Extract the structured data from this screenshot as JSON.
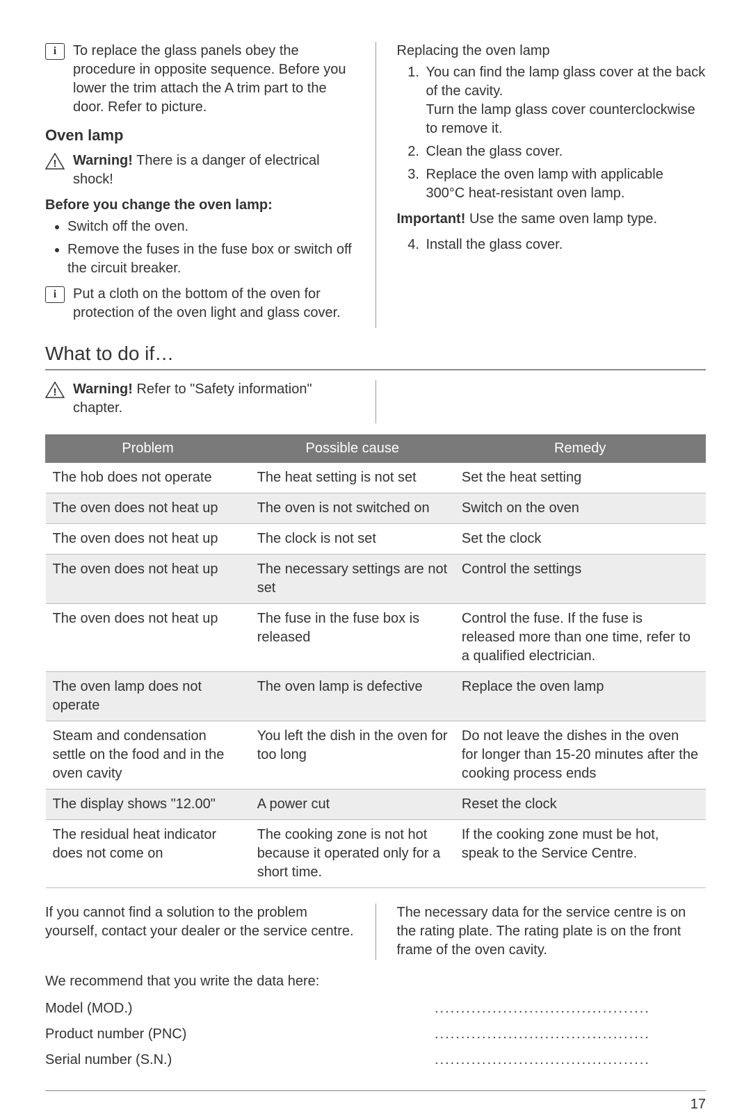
{
  "left": {
    "info_1": "To replace the glass panels obey the procedure in opposite sequence. Before you lower the trim attach the A trim part to the door. Refer to picture.",
    "oven_lamp_heading": "Oven lamp",
    "warn_1_bold": "Warning!",
    "warn_1_text": " There is a danger of electrical shock!",
    "before_heading": "Before you change the oven lamp:",
    "bullets": [
      "Switch off the oven.",
      "Remove the fuses in the fuse box or switch off the circuit breaker."
    ],
    "info_2": "Put a cloth on the bottom of the oven for protection of the oven light and glass cover."
  },
  "right": {
    "replacing_heading": "Replacing the oven lamp",
    "step1a": "You can find the lamp glass cover at the back of the cavity.",
    "step1b": "Turn the lamp glass cover counterclockwise to remove it.",
    "step2": "Clean the glass cover.",
    "step3": "Replace the oven lamp with applicable 300°C heat-resistant oven lamp.",
    "important_bold": "Important!",
    "important_text": " Use the same oven lamp type.",
    "step4": "Install the glass cover."
  },
  "section_title": "What to do if…",
  "warn_2_bold": "Warning!",
  "warn_2_text": " Refer to \"Safety information\" chapter.",
  "table": {
    "headers": [
      "Problem",
      "Possible cause",
      "Remedy"
    ],
    "rows": [
      [
        "The hob does not operate",
        "The heat setting is not set",
        "Set the heat setting"
      ],
      [
        "The oven does not heat up",
        "The oven is not switched on",
        "Switch on the oven"
      ],
      [
        "The oven does not heat up",
        "The clock is not set",
        "Set the clock"
      ],
      [
        "The oven does not heat up",
        "The necessary settings are not set",
        "Control the settings"
      ],
      [
        "The oven does not heat up",
        "The fuse in the fuse box is released",
        "Control the fuse. If the fuse is released more than one time, refer to a qualified electrician."
      ],
      [
        "The oven lamp does not operate",
        "The oven lamp is defective",
        "Replace the oven lamp"
      ],
      [
        "Steam and condensation settle on the food and in the oven cavity",
        "You left the dish in the oven for too long",
        "Do not leave the dishes in the oven for longer than 15-20 minutes after the cooking process ends"
      ],
      [
        "The display shows \"12.00\"",
        "A power cut",
        "Reset the clock"
      ],
      [
        "The residual heat indicator does not come on",
        "The cooking zone is not hot because it operated only for a short time.",
        "If the cooking zone must be hot, speak to the Service Centre."
      ]
    ]
  },
  "closing": {
    "left": "If you cannot find a solution to the problem yourself, contact your dealer or the service centre.",
    "right": "The necessary data for the service centre is on the rating plate. The rating plate is on the front frame of the oven cavity."
  },
  "data_fields": {
    "intro": "We recommend that you write the data here:",
    "labels": [
      "Model (MOD.)",
      "Product number (PNC)",
      "Serial number (S.N.)"
    ],
    "dots": "........................................."
  },
  "page_number": "17"
}
